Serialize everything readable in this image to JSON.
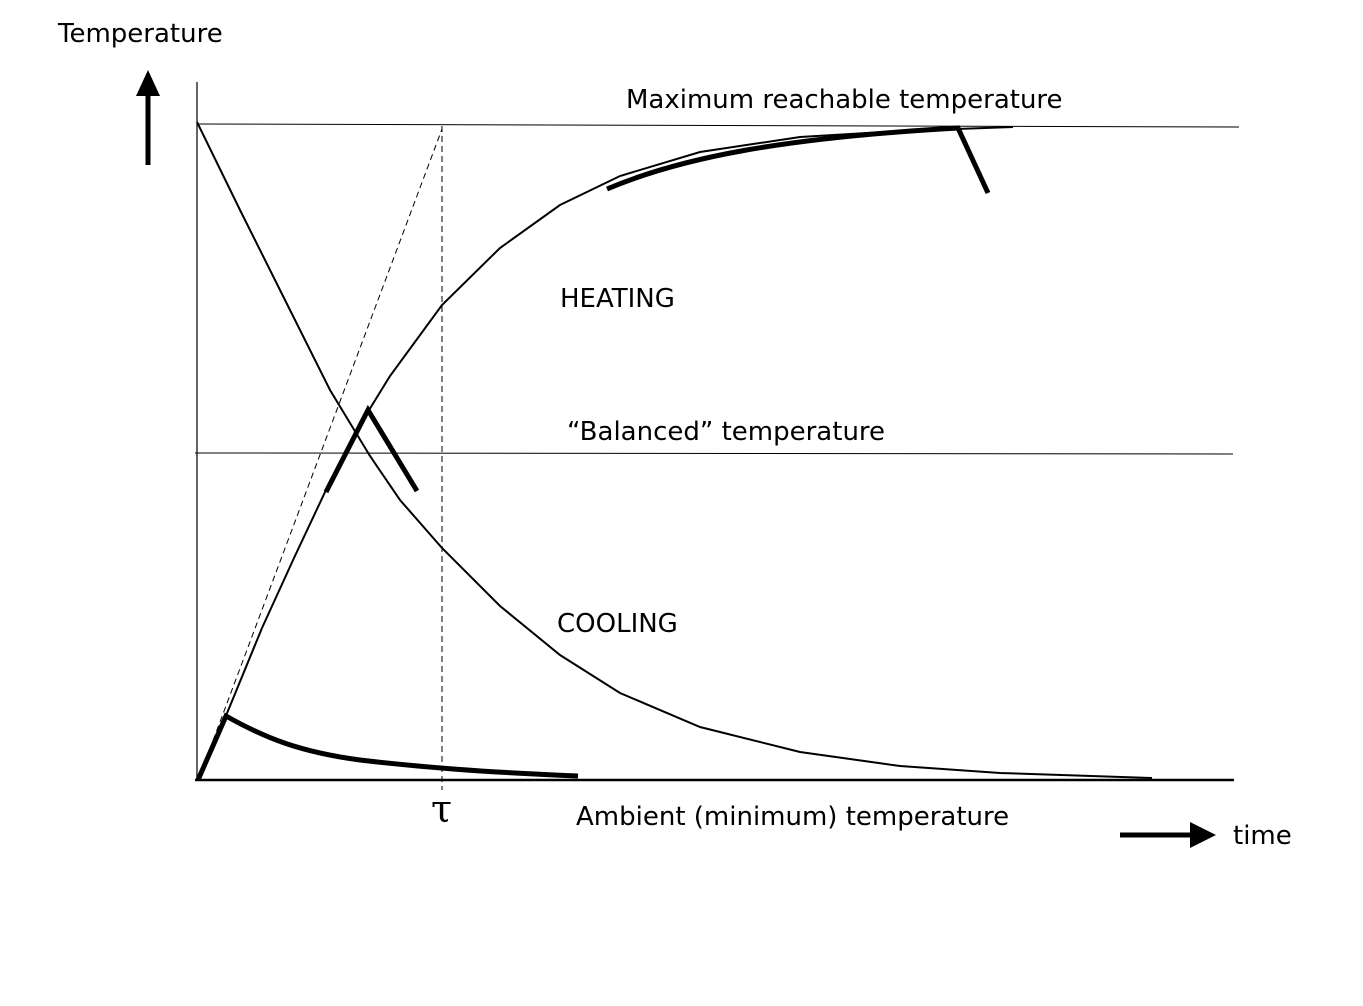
{
  "labels": {
    "y_axis": "Temperature",
    "x_axis": "time",
    "max_temp": "Maximum reachable temperature",
    "balanced_temp": "“Balanced” temperature",
    "ambient_temp": "Ambient (minimum) temperature",
    "heating": "HEATING",
    "cooling": "COOLING",
    "tau": "τ"
  },
  "colors": {
    "ink": "#000000",
    "background": "#ffffff"
  }
}
